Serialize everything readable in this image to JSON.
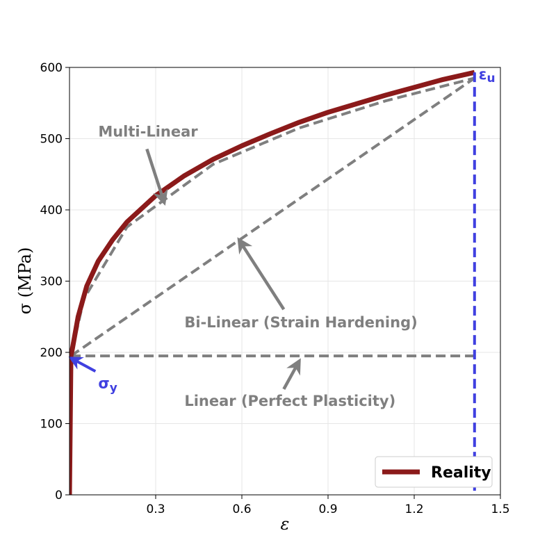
{
  "chart_data": {
    "type": "line",
    "xlabel": "ε",
    "ylabel": "σ (MPa)",
    "xlim": [
      0,
      1.5
    ],
    "ylim": [
      0,
      600
    ],
    "xticks": [
      0.3,
      0.6,
      0.9,
      1.2,
      1.5
    ],
    "xtick_labels": [
      "0.3",
      "0.6",
      "0.9",
      "1.2",
      "1.5"
    ],
    "yticks": [
      0,
      100,
      200,
      300,
      400,
      500,
      600
    ],
    "ytick_labels": [
      "0",
      "100",
      "200",
      "300",
      "400",
      "500",
      "600"
    ],
    "grid": true,
    "legend": {
      "placement": "bottom-right",
      "entries": [
        "Reality"
      ]
    },
    "series": [
      {
        "name": "Reality",
        "color": "#8B1A1A",
        "style": "solid",
        "x": [
          0,
          0.005,
          0.01,
          0.03,
          0.06,
          0.1,
          0.15,
          0.2,
          0.3,
          0.4,
          0.5,
          0.6,
          0.7,
          0.8,
          0.9,
          1.0,
          1.1,
          1.2,
          1.3,
          1.41
        ],
        "y": [
          0,
          195,
          205,
          250,
          293,
          328,
          358,
          383,
          420,
          448,
          471,
          490,
          507,
          523,
          537,
          549,
          561,
          572,
          583,
          593
        ]
      },
      {
        "label_key": "multi",
        "color": "#7f7f7f",
        "style": "dashed",
        "x": [
          0,
          0.005,
          0.05,
          0.2,
          0.5,
          0.8,
          1.1,
          1.41
        ],
        "y": [
          0,
          195,
          275,
          376,
          464,
          515,
          553,
          585
        ]
      },
      {
        "label_key": "bilinear",
        "color": "#7f7f7f",
        "style": "dashed",
        "x": [
          0.005,
          1.41
        ],
        "y": [
          195,
          585
        ]
      },
      {
        "label_key": "linear",
        "color": "#7f7f7f",
        "style": "dashed",
        "x": [
          0.005,
          1.41
        ],
        "y": [
          195,
          195
        ]
      }
    ],
    "markers": {
      "eps_u": {
        "x": 1.41,
        "label": "εu",
        "color": "#4040e0"
      },
      "sigma_y": {
        "y": 195,
        "label": "σy",
        "color": "#4040e0"
      }
    },
    "annotations": [
      {
        "key": "multi",
        "text": "Multi-Linear",
        "text_x": 0.1,
        "text_y": 503,
        "arrow_x": 0.33,
        "arrow_y": 410,
        "color": "#7f7f7f"
      },
      {
        "key": "bilinear",
        "text": "Bi-Linear (Strain Hardening)",
        "text_x": 0.4,
        "text_y": 235,
        "arrow_x": 0.59,
        "arrow_y": 358,
        "color": "#7f7f7f"
      },
      {
        "key": "linear",
        "text": "Linear (Perfect Plasticity)",
        "text_x": 0.4,
        "text_y": 125,
        "arrow_x": 0.8,
        "arrow_y": 188,
        "color": "#7f7f7f"
      },
      {
        "key": "sigma_y",
        "text": "σy",
        "text_x": 0.1,
        "text_y": 150,
        "arrow_x": 0.005,
        "arrow_y": 192,
        "color": "#4040e0"
      }
    ]
  }
}
